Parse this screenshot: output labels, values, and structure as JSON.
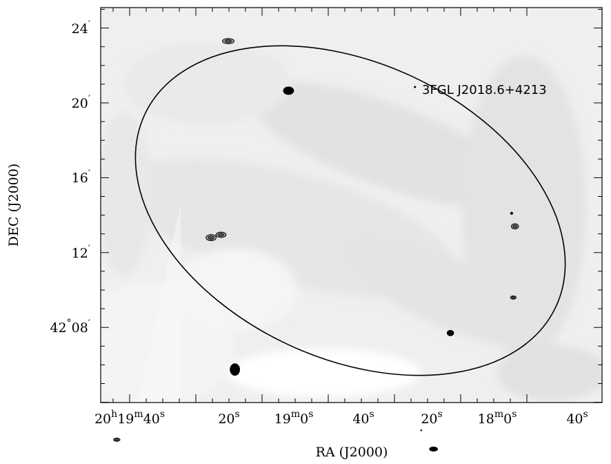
{
  "chart_data": {
    "type": "image",
    "xlabel": "RA (J2000)",
    "ylabel": "DEC (J2000)",
    "colormap": "grayscale",
    "xlim_ra_sec": [
      1186,
      1077
    ],
    "ylim_dec_arcmin": [
      2161.4,
      2185.2
    ],
    "x_ticks": [
      {
        "ra_sec": 1180,
        "label_main": "20",
        "sup1": "h",
        "mid": "19",
        "sup2": "m",
        "last": "40",
        "sup3": "s"
      },
      {
        "ra_sec": 1160,
        "label_main": "20",
        "sup1": "s"
      },
      {
        "ra_sec": 1140,
        "label_main": "19",
        "sup1": "m",
        "mid": "0",
        "sup2": "s"
      },
      {
        "ra_sec": 1120,
        "label_main": "40",
        "sup1": "s"
      },
      {
        "ra_sec": 1100,
        "label_main": "20",
        "sup1": "s"
      },
      {
        "ra_sec": 1080,
        "label_main": "18",
        "sup1": "m",
        "mid": "0",
        "sup2": "s"
      },
      {
        "ra_sec": 1060,
        "label_main": "40",
        "sup1": "s"
      }
    ],
    "y_ticks": [
      {
        "dec_arcmin": 2168,
        "label": "42°08′"
      },
      {
        "dec_arcmin": 2172,
        "label": "12′"
      },
      {
        "dec_arcmin": 2176,
        "label": "16′"
      },
      {
        "dec_arcmin": 2180,
        "label": "20′"
      },
      {
        "dec_arcmin": 2184,
        "label": "24′"
      }
    ],
    "annotations": [
      {
        "text": "3FGL J2018.6+4213",
        "ra_sec": 1103,
        "dec_arcmin": 2180.8
      }
    ],
    "ellipse_outline": [
      {
        "ra_sec": 1116.6,
        "dec_arcmin": 2183.0
      },
      {
        "ra_sec": 1096.4,
        "dec_arcmin": 2181.6
      },
      {
        "ra_sec": 1063.6,
        "dec_arcmin": 2170.9
      },
      {
        "ra_sec": 1092.2,
        "dec_arcmin": 2165.8
      },
      {
        "ra_sec": 1131.6,
        "dec_arcmin": 2168.6
      },
      {
        "ra_sec": 1172.3,
        "dec_arcmin": 2177.9
      },
      {
        "ra_sec": 1154.4,
        "dec_arcmin": 2182.5
      }
    ],
    "sources": [
      {
        "ra_sec": 1150.2,
        "dec_arcmin": 2183.3,
        "kind": "contour",
        "rx": 0.8,
        "ry": 0.13
      },
      {
        "ra_sec": 1132.0,
        "dec_arcmin": 2180.65,
        "kind": "filled",
        "rx": 0.75,
        "ry": 0.2
      },
      {
        "ra_sec": 1093.8,
        "dec_arcmin": 2180.85,
        "kind": "filled",
        "rx": 0.15,
        "ry": 0.05
      },
      {
        "ra_sec": 1155.4,
        "dec_arcmin": 2172.8,
        "kind": "contour",
        "rx": 0.7,
        "ry": 0.15
      },
      {
        "ra_sec": 1152.4,
        "dec_arcmin": 2172.95,
        "kind": "contour",
        "rx": 0.7,
        "ry": 0.13
      },
      {
        "ra_sec": 1064.6,
        "dec_arcmin": 2174.1,
        "kind": "filled",
        "rx": 0.2,
        "ry": 0.07
      },
      {
        "ra_sec": 1063.6,
        "dec_arcmin": 2173.4,
        "kind": "contour",
        "rx": 0.5,
        "ry": 0.13
      },
      {
        "ra_sec": 1064.1,
        "dec_arcmin": 2169.6,
        "kind": "contour",
        "rx": 0.4,
        "ry": 0.08
      },
      {
        "ra_sec": 1083.1,
        "dec_arcmin": 2167.7,
        "kind": "filled",
        "rx": 0.5,
        "ry": 0.15
      },
      {
        "ra_sec": 1148.2,
        "dec_arcmin": 2165.75,
        "kind": "filled",
        "rx": 0.7,
        "ry": 0.3
      },
      {
        "ra_sec": 1183.9,
        "dec_arcmin": 2162.0,
        "kind": "contour",
        "rx": 0.45,
        "ry": 0.08
      },
      {
        "ra_sec": 1091.9,
        "dec_arcmin": 2162.5,
        "kind": "filled",
        "rx": 0.12,
        "ry": 0.04
      },
      {
        "ra_sec": 1088.2,
        "dec_arcmin": 2161.5,
        "kind": "filled",
        "rx": 0.6,
        "ry": 0.12
      }
    ]
  }
}
